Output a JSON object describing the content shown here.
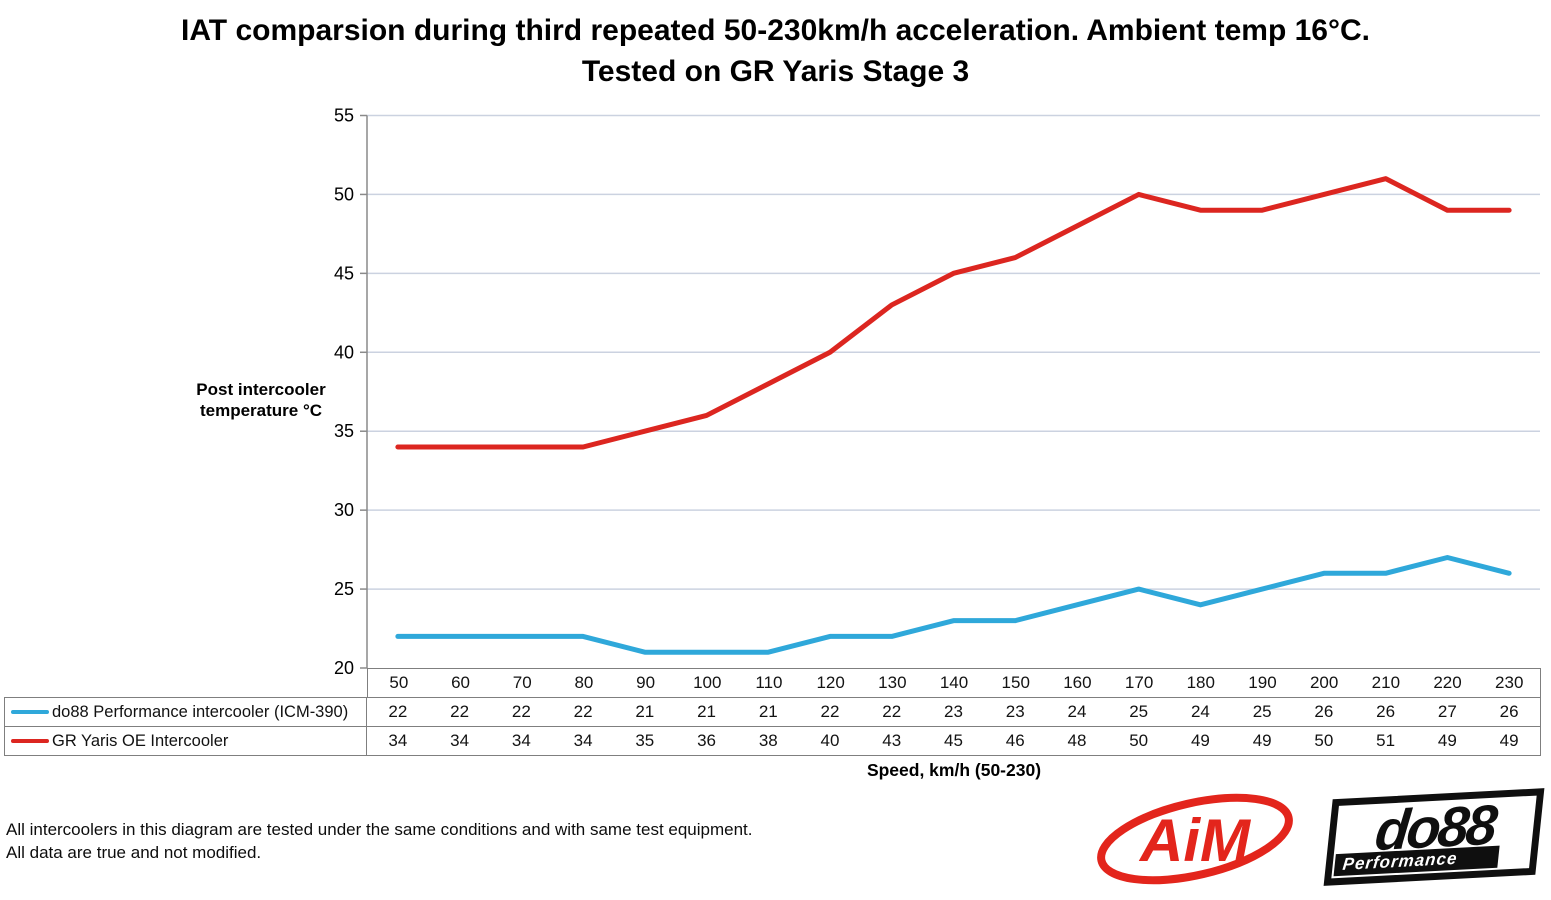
{
  "title": {
    "line1": "IAT comparsion during third repeated 50-230km/h acceleration. Ambient temp 16°C.",
    "line2": "Tested on GR Yaris Stage 3"
  },
  "chart_data": {
    "type": "line",
    "title": "IAT comparsion during third repeated 50-230km/h acceleration. Ambient temp 16°C. Tested on GR Yaris Stage 3",
    "categories": [
      50,
      60,
      70,
      80,
      90,
      100,
      110,
      120,
      130,
      140,
      150,
      160,
      170,
      180,
      190,
      200,
      210,
      220,
      230
    ],
    "series": [
      {
        "name": "do88 Performance intercooler (ICM-390)",
        "color": "#2FA8DA",
        "values": [
          22,
          22,
          22,
          22,
          21,
          21,
          21,
          22,
          22,
          23,
          23,
          24,
          25,
          24,
          25,
          26,
          26,
          27,
          26
        ]
      },
      {
        "name": "GR Yaris OE Intercooler",
        "color": "#DC2620",
        "values": [
          34,
          34,
          34,
          34,
          35,
          36,
          38,
          40,
          43,
          45,
          46,
          48,
          50,
          49,
          49,
          50,
          51,
          49,
          49
        ]
      }
    ],
    "ylabel_line1": "Post intercooler",
    "ylabel_line2": "temperature °C",
    "xlabel": "Speed, km/h (50-230)",
    "ylim": [
      20,
      55
    ],
    "yticks": [
      20,
      25,
      30,
      35,
      40,
      45,
      50,
      55
    ],
    "grid": true,
    "legend_position": "table-left"
  },
  "footer": {
    "line1": "All intercoolers in this diagram are tested under the same conditions and with same test equipment.",
    "line2": "All data are true and not modified."
  },
  "logos": {
    "aim_text": "AiM",
    "do88_text": "do88",
    "do88_subtext": "Performance"
  },
  "colors": {
    "gridline": "#CBD2E0",
    "axis": "#8A8A8A",
    "table_border": "#7F7F7F",
    "aim_red": "#E3251C",
    "logo_black": "#0F0F0F"
  }
}
